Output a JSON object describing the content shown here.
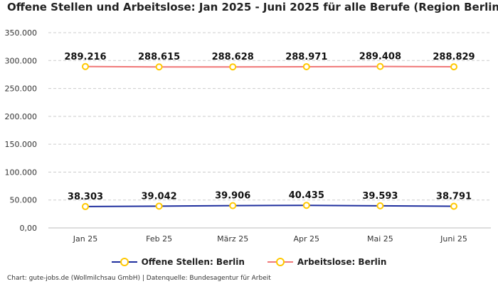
{
  "chart_data": {
    "type": "line",
    "title": "Offene Stellen und Arbeitslose: Jan 2025 - Juni 2025 für alle Berufe (Region Berlin)",
    "categories": [
      "Jan 25",
      "Feb 25",
      "März 25",
      "Apr 25",
      "Mai 25",
      "Juni 25"
    ],
    "series": [
      {
        "name": "Offene Stellen: Berlin",
        "values": [
          38303,
          39042,
          39906,
          40435,
          39593,
          38791
        ],
        "labels": [
          "38.303",
          "39.042",
          "39.906",
          "40.435",
          "39.593",
          "38.791"
        ],
        "color": "#1f2f9e"
      },
      {
        "name": "Arbeitslose: Berlin",
        "values": [
          289216,
          288615,
          288628,
          288971,
          289408,
          288829
        ],
        "labels": [
          "289.216",
          "288.615",
          "288.628",
          "288.971",
          "289.408",
          "288.829"
        ],
        "color": "#f07878"
      }
    ],
    "ylim": [
      0,
      350000
    ],
    "yticks": [
      0,
      50000,
      100000,
      150000,
      200000,
      250000,
      300000,
      350000
    ],
    "ytick_labels": [
      "0,00",
      "50.000",
      "100.000",
      "150.000",
      "200.000",
      "250.000",
      "300.000",
      "350.000"
    ],
    "grid": true,
    "legend_position": "bottom",
    "marker_color": "#ffc800"
  },
  "footer": "Chart: gute-jobs.de (Wollmilchsau GmbH) | Datenquelle: Bundesagentur für Arbeit"
}
